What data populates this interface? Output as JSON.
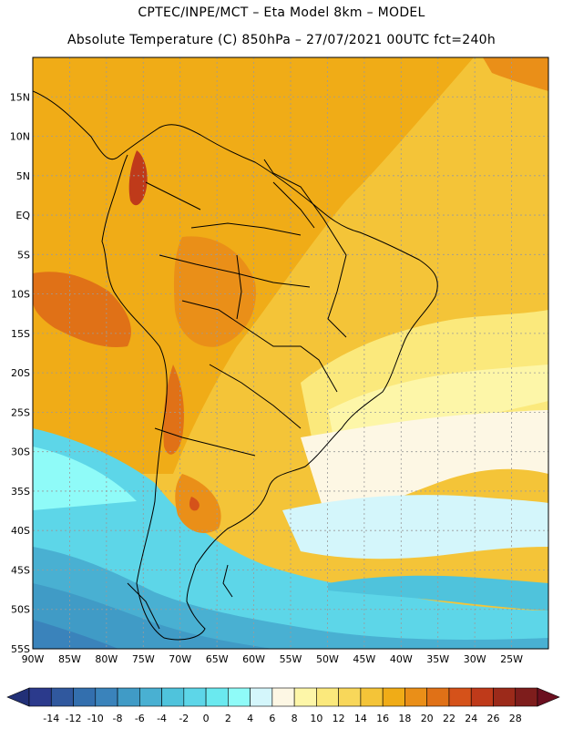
{
  "header": {
    "line1": "CPTEC/INPE/MCT –  Eta Model 8km – MODEL",
    "line2": "Absolute Temperature (C) 850hPa – 27/07/2021 00UTC fct=240h"
  },
  "map": {
    "lat_labels": [
      "15N",
      "10N",
      "5N",
      "EQ",
      "5S",
      "10S",
      "15S",
      "20S",
      "25S",
      "30S",
      "35S",
      "40S",
      "45S",
      "50S",
      "55S"
    ],
    "lon_labels": [
      "90W",
      "85W",
      "80W",
      "75W",
      "70W",
      "65W",
      "60W",
      "55W",
      "50W",
      "45W",
      "40W",
      "35W",
      "30W",
      "25W"
    ],
    "extent": {
      "lon_min": -90,
      "lon_max": -20,
      "lat_min": -55,
      "lat_max": 20
    },
    "grid": true
  },
  "colorbar": {
    "labels": [
      "-14",
      "-12",
      "-10",
      "-8",
      "-6",
      "-4",
      "-2",
      "0",
      "2",
      "4",
      "6",
      "8",
      "10",
      "12",
      "14",
      "16",
      "18",
      "20",
      "22",
      "24",
      "26",
      "28"
    ],
    "colors": [
      "#2b3a8c",
      "#30589e",
      "#336fae",
      "#3a83bb",
      "#409bc6",
      "#49b0d2",
      "#4fc3dc",
      "#5dd6e8",
      "#6ae9ef",
      "#8ffbf8",
      "#d4f6fb",
      "#fdf7e4",
      "#fdf6a8",
      "#fbe97c",
      "#f8d75a",
      "#f4c438",
      "#f0ac17",
      "#ea8f18",
      "#e07117",
      "#d5521a",
      "#bf3a1a",
      "#9c2a1a",
      "#7e1d1c"
    ],
    "end_left_color": "#223077",
    "end_right_color": "#6b0f1f"
  }
}
